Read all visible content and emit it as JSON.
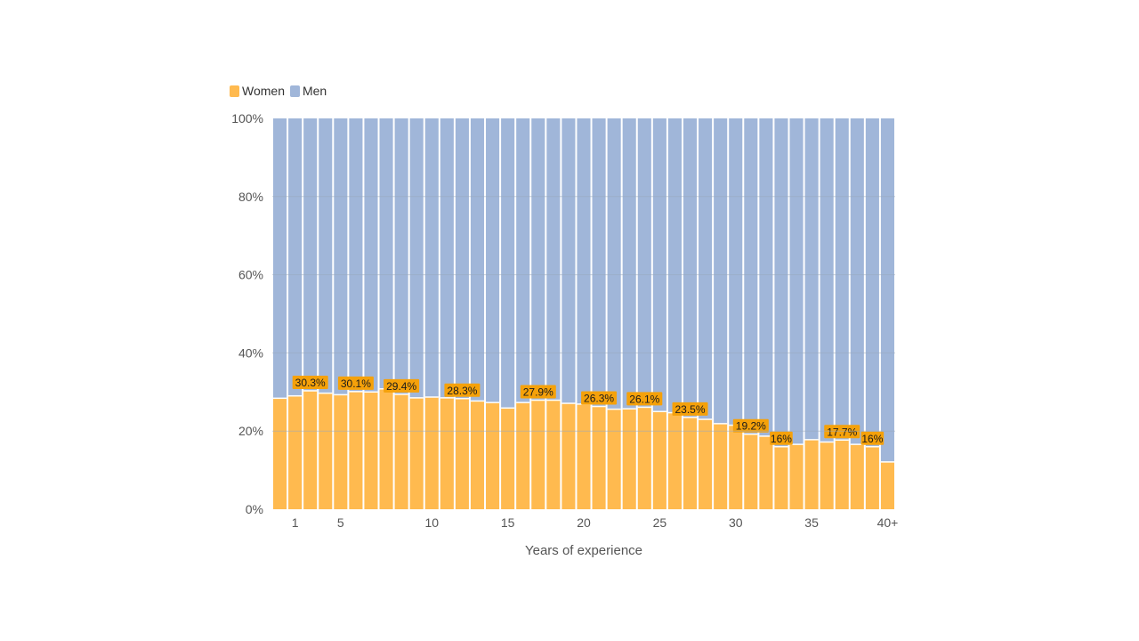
{
  "legend": {
    "women_label": "Women",
    "men_label": "Men"
  },
  "colors": {
    "women": "#ffba4f",
    "men": "#a0b6d9",
    "label_bg": "#f5a10a",
    "grid": "#9aa9bd"
  },
  "chart_data": {
    "type": "bar",
    "stacked": true,
    "xlabel": "Years of experience",
    "ylabel": "",
    "ylim": [
      0,
      100
    ],
    "yticks": [
      "0%",
      "20%",
      "40%",
      "60%",
      "80%",
      "100%"
    ],
    "xtick_labels": [
      {
        "index": 1,
        "label": "1"
      },
      {
        "index": 4,
        "label": "5"
      },
      {
        "index": 10,
        "label": "10"
      },
      {
        "index": 15,
        "label": "15"
      },
      {
        "index": 20,
        "label": "20"
      },
      {
        "index": 25,
        "label": "25"
      },
      {
        "index": 30,
        "label": "30"
      },
      {
        "index": 35,
        "label": "35"
      },
      {
        "index": 40,
        "label": "40+"
      }
    ],
    "series": [
      {
        "name": "Women",
        "values": [
          28.4,
          29.0,
          30.3,
          29.7,
          29.3,
          30.1,
          30.0,
          30.8,
          29.4,
          28.5,
          28.7,
          28.5,
          28.3,
          27.7,
          27.3,
          25.9,
          27.3,
          27.9,
          27.9,
          27.1,
          26.9,
          26.3,
          25.6,
          25.7,
          26.1,
          25.0,
          24.7,
          23.5,
          23.0,
          21.9,
          21.5,
          19.2,
          18.7,
          16.0,
          16.6,
          17.8,
          17.2,
          17.7,
          16.6,
          16.0,
          12.1
        ]
      },
      {
        "name": "Men",
        "values": [
          71.6,
          71.0,
          69.7,
          70.3,
          70.7,
          69.9,
          70.0,
          69.2,
          70.6,
          71.5,
          71.3,
          71.5,
          71.7,
          72.3,
          72.7,
          74.1,
          72.7,
          72.1,
          72.1,
          72.9,
          73.1,
          73.7,
          74.4,
          74.3,
          73.9,
          75.0,
          75.3,
          76.5,
          77.0,
          78.1,
          78.5,
          80.8,
          81.3,
          84.0,
          83.4,
          82.2,
          82.8,
          82.3,
          83.4,
          84.0,
          87.9
        ]
      }
    ],
    "annotations": [
      {
        "index": 2,
        "label": "30.3%"
      },
      {
        "index": 5,
        "label": "30.1%"
      },
      {
        "index": 8,
        "label": "29.4%"
      },
      {
        "index": 12,
        "label": "28.3%"
      },
      {
        "index": 17,
        "label": "27.9%"
      },
      {
        "index": 21,
        "label": "26.3%"
      },
      {
        "index": 24,
        "label": "26.1%"
      },
      {
        "index": 27,
        "label": "23.5%"
      },
      {
        "index": 31,
        "label": "19.2%"
      },
      {
        "index": 33,
        "label": "16%"
      },
      {
        "index": 37,
        "label": "17.7%"
      },
      {
        "index": 39,
        "label": "16%"
      }
    ]
  }
}
